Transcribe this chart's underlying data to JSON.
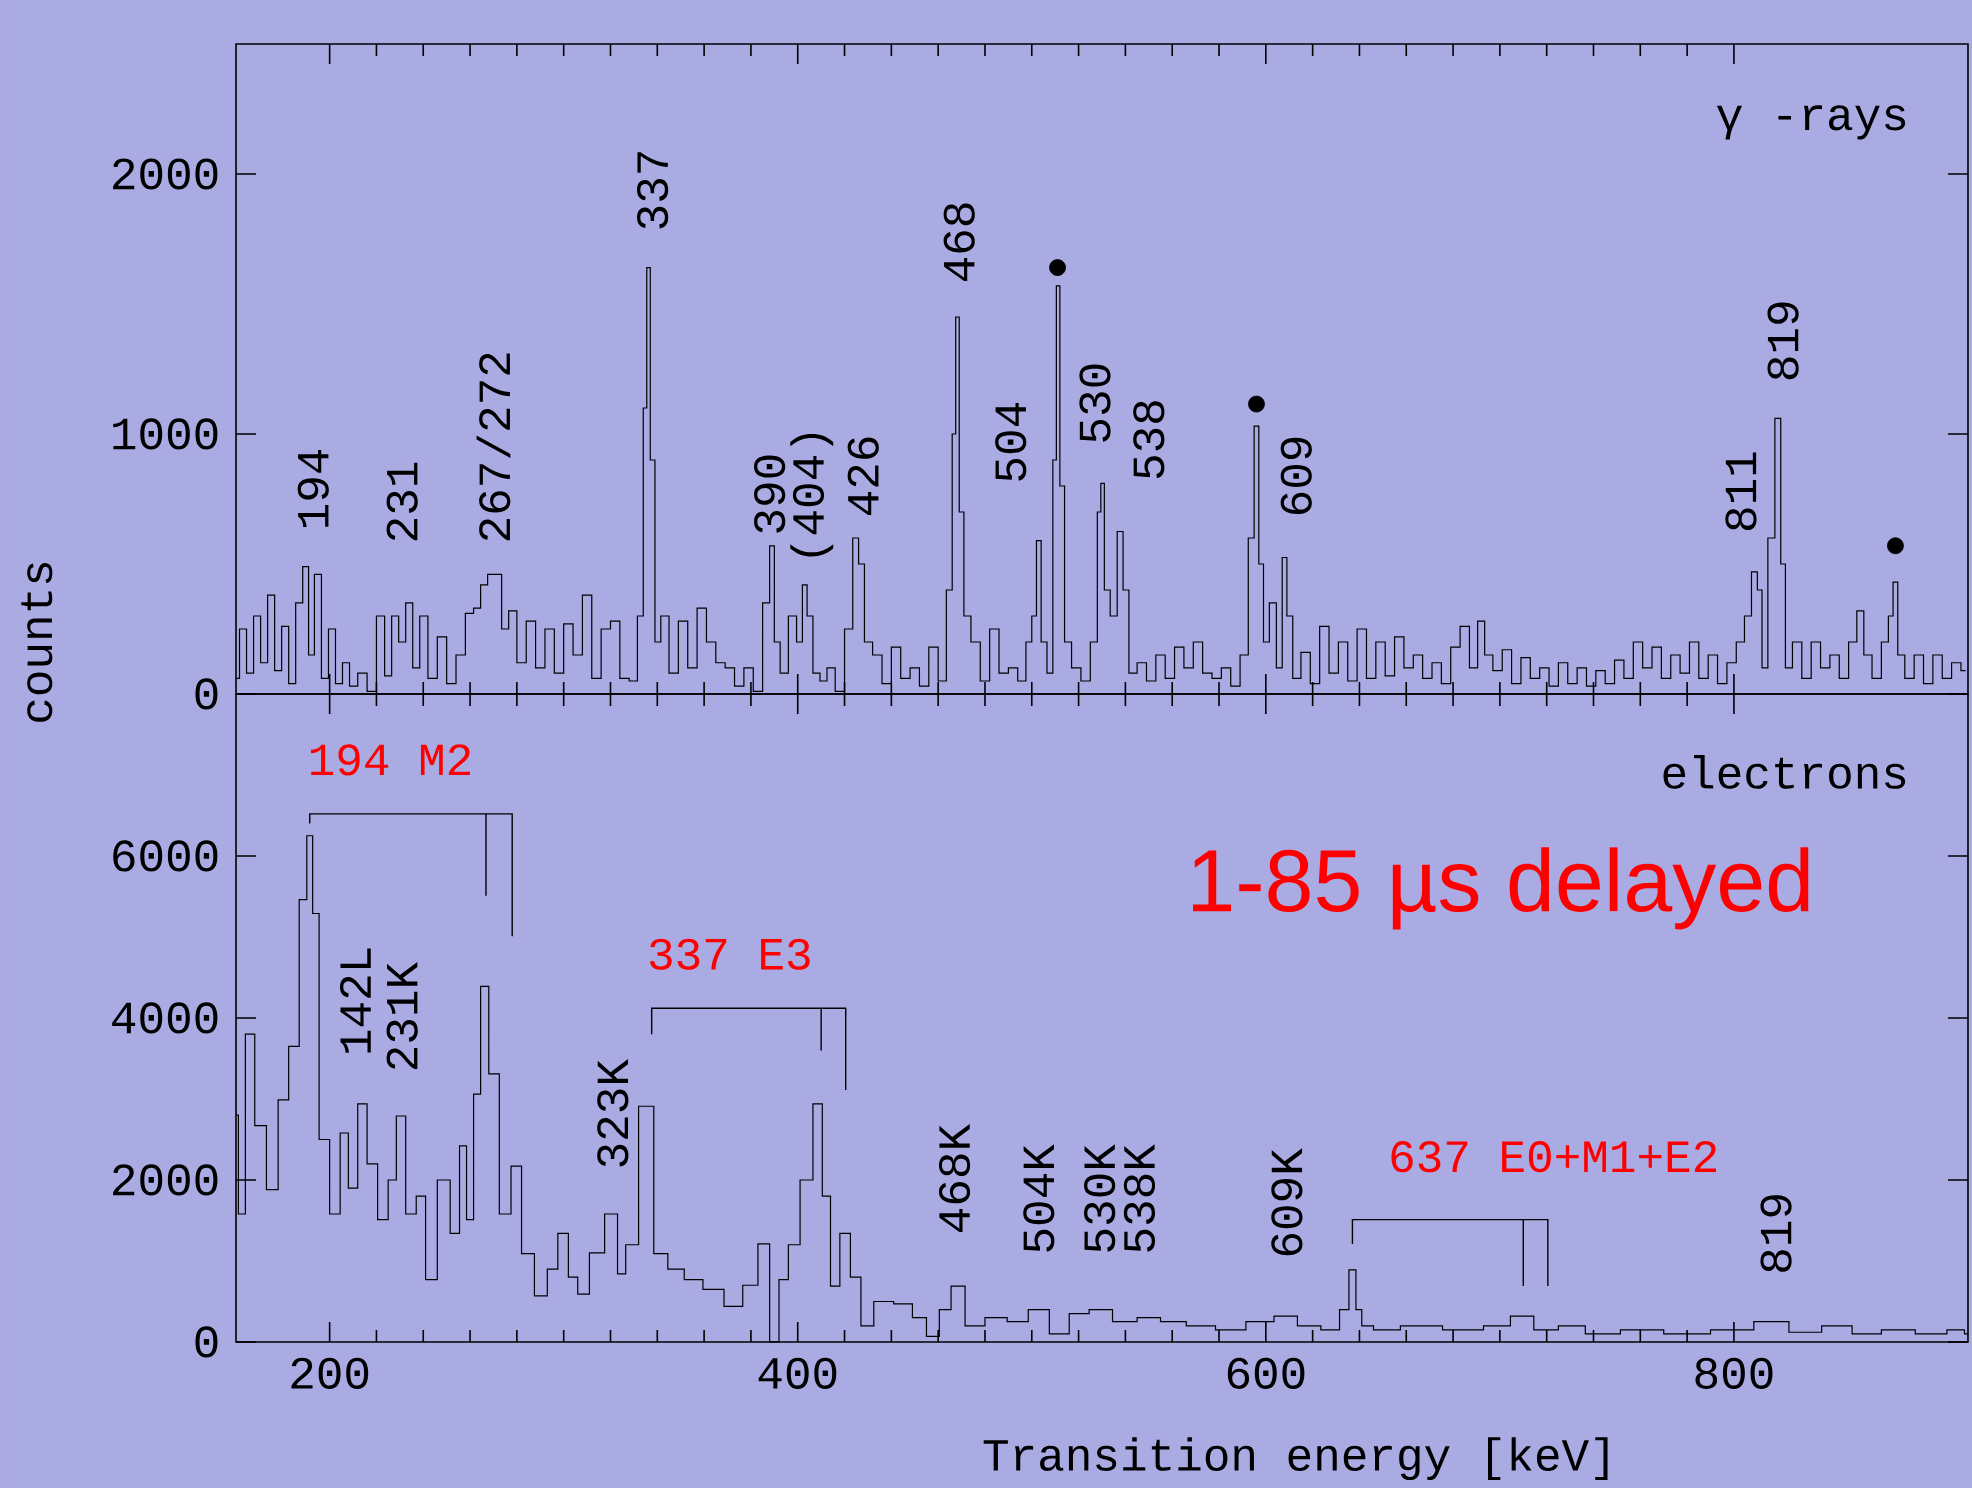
{
  "chart_data": [
    {
      "type": "step",
      "ylabel": "counts",
      "xlim": [
        160,
        900
      ],
      "ylim": [
        0,
        2500
      ],
      "xticks": [
        200,
        400,
        600,
        800
      ],
      "yticks": [
        0,
        1000,
        2000
      ],
      "tick_labels": "y",
      "series": [
        {
          "color": "#000000",
          "x": [
            160,
            163,
            166,
            169,
            172,
            175,
            178,
            181,
            184,
            187,
            190,
            192,
            195,
            198,
            201,
            204,
            207,
            210,
            214,
            218,
            222,
            225,
            228,
            231,
            234,
            237,
            240,
            244,
            248,
            252,
            256,
            260,
            263,
            266,
            269,
            272,
            275,
            278,
            282,
            286,
            290,
            294,
            298,
            302,
            306,
            310,
            314,
            318,
            322,
            326,
            330,
            333,
            335,
            336,
            338,
            340,
            343,
            347,
            351,
            355,
            359,
            363,
            367,
            371,
            375,
            379,
            383,
            387,
            389,
            391,
            394,
            398,
            401,
            403,
            405,
            408,
            411,
            414,
            418,
            422,
            425,
            427,
            430,
            434,
            438,
            442,
            446,
            450,
            454,
            458,
            462,
            465,
            467,
            468,
            470,
            472,
            476,
            480,
            484,
            488,
            492,
            496,
            499,
            501,
            503,
            505,
            508,
            510,
            511,
            513,
            515,
            519,
            523,
            527,
            529,
            530,
            532,
            535,
            538,
            540,
            543,
            547,
            551,
            555,
            559,
            563,
            567,
            571,
            575,
            579,
            583,
            587,
            591,
            594,
            596,
            598,
            600,
            603,
            606,
            608,
            610,
            613,
            617,
            621,
            625,
            629,
            633,
            637,
            641,
            645,
            649,
            653,
            657,
            661,
            665,
            669,
            673,
            677,
            681,
            685,
            689,
            692,
            695,
            699,
            703,
            707,
            711,
            715,
            719,
            723,
            727,
            731,
            735,
            739,
            743,
            747,
            751,
            755,
            759,
            763,
            767,
            771,
            775,
            779,
            783,
            787,
            791,
            795,
            799,
            803,
            806,
            809,
            811,
            813,
            816,
            819,
            821,
            823,
            827,
            831,
            835,
            839,
            843,
            847,
            851,
            854,
            857,
            861,
            865,
            867,
            869,
            871,
            875,
            879,
            883,
            887,
            891,
            895,
            899
          ],
          "values": [
            60,
            250,
            80,
            300,
            120,
            380,
            90,
            260,
            40,
            350,
            490,
            150,
            460,
            60,
            250,
            40,
            120,
            30,
            80,
            10,
            300,
            70,
            300,
            200,
            350,
            100,
            300,
            60,
            220,
            40,
            150,
            310,
            330,
            420,
            460,
            460,
            250,
            320,
            120,
            280,
            100,
            250,
            80,
            270,
            150,
            380,
            60,
            250,
            280,
            60,
            50,
            300,
            1100,
            1640,
            900,
            200,
            300,
            80,
            280,
            100,
            330,
            200,
            120,
            100,
            30,
            100,
            10,
            350,
            570,
            200,
            80,
            300,
            200,
            420,
            300,
            80,
            50,
            100,
            10,
            250,
            600,
            500,
            200,
            150,
            40,
            180,
            60,
            100,
            30,
            180,
            50,
            400,
            1000,
            1450,
            700,
            300,
            200,
            50,
            250,
            80,
            100,
            50,
            200,
            300,
            590,
            200,
            80,
            900,
            1570,
            800,
            200,
            100,
            50,
            200,
            700,
            810,
            400,
            300,
            625,
            400,
            80,
            120,
            50,
            150,
            60,
            180,
            100,
            200,
            80,
            60,
            100,
            30,
            150,
            600,
            1030,
            500,
            200,
            350,
            100,
            525,
            300,
            60,
            160,
            40,
            260,
            80,
            200,
            50,
            250,
            60,
            200,
            70,
            220,
            100,
            150,
            60,
            120,
            40,
            180,
            260,
            100,
            280,
            150,
            90,
            170,
            40,
            140,
            60,
            100,
            30,
            120,
            40,
            100,
            30,
            90,
            40,
            130,
            60,
            200,
            100,
            180,
            60,
            150,
            80,
            200,
            60,
            150,
            40,
            120,
            200,
            300,
            470,
            400,
            100,
            600,
            1060,
            500,
            100,
            200,
            60,
            200,
            100,
            150,
            60,
            200,
            320,
            150,
            60,
            200,
            300,
            430,
            150,
            60,
            150,
            40,
            150,
            60,
            120,
            90
          ]
        },
        {
          "type": "scatter",
          "color": "#000000",
          "marker": "circle",
          "x": [
            511,
            596,
            869
          ],
          "values": [
            1640,
            1115,
            570
          ]
        }
      ],
      "annotations": [
        "194",
        "231",
        "267/272",
        "337",
        "390",
        "(404)",
        "426",
        "468",
        "504",
        "530",
        "538",
        "609",
        "811",
        "819",
        "γ -rays"
      ]
    },
    {
      "type": "step",
      "xlabel": "Transition energy [keV]",
      "xlim": [
        160,
        900
      ],
      "ylim": [
        0,
        8000
      ],
      "xticks": [
        200,
        400,
        600,
        800
      ],
      "yticks": [
        0,
        2000,
        4000,
        6000
      ],
      "series": [
        {
          "color": "#000000",
          "x": [
            160,
            162,
            166,
            170,
            176,
            180,
            185,
            189,
            191.5,
            194,
            197,
            203,
            206,
            210,
            214,
            218,
            223,
            227,
            230,
            235,
            239,
            243,
            249,
            254,
            257,
            260,
            263,
            266,
            270,
            275,
            280,
            284,
            291,
            295,
            300,
            304,
            308,
            314,
            321,
            325,
            328,
            336,
            341,
            348,
            355,
            364,
            373,
            380,
            386,
            390,
            394,
            398,
            404,
            409,
            412,
            416,
            420,
            425,
            429,
            436,
            446,
            452,
            458,
            463,
            468,
            475,
            485,
            494,
            503,
            512,
            520,
            529,
            540,
            550,
            560,
            572,
            585,
            598,
            609,
            618,
            629,
            634,
            637,
            640,
            642,
            650,
            665,
            686,
            700,
            709,
            720,
            730,
            743,
            760,
            780,
            800,
            817,
            830,
            845,
            856,
            870,
            885,
            897,
            900
          ],
          "values": [
            2800,
            1580,
            3800,
            2670,
            1880,
            2990,
            3650,
            5460,
            6250,
            5290,
            2500,
            1580,
            2580,
            1900,
            2940,
            2200,
            1510,
            2000,
            2790,
            1580,
            1800,
            770,
            2000,
            1340,
            2420,
            1510,
            3060,
            4390,
            3310,
            1580,
            2170,
            1090,
            570,
            900,
            1340,
            800,
            590,
            1100,
            1580,
            840,
            1200,
            2910,
            1090,
            900,
            770,
            650,
            440,
            700,
            1210,
            0,
            770,
            1200,
            2000,
            2940,
            1800,
            690,
            1340,
            800,
            200,
            500,
            470,
            300,
            70,
            400,
            690,
            200,
            300,
            250,
            400,
            100,
            350,
            400,
            250,
            300,
            250,
            200,
            150,
            250,
            320,
            200,
            150,
            400,
            890,
            400,
            200,
            150,
            200,
            150,
            200,
            320,
            150,
            200,
            100,
            150,
            100,
            150,
            250,
            120,
            200,
            100,
            150,
            100,
            150,
            100
          ]
        }
      ],
      "annotations": [
        "194 M2",
        "142L",
        "231K",
        "337 E3",
        "323K",
        "468K",
        "504K",
        "530K",
        "538K",
        "609K",
        "637 E0+M1+E2",
        "819",
        "electrons",
        "1-85 µs delayed"
      ]
    }
  ]
}
